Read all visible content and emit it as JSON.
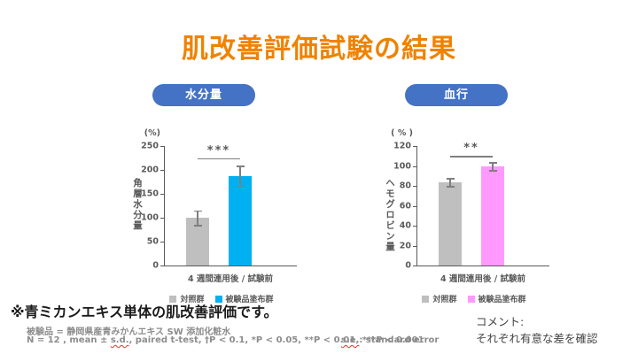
{
  "title": "肌改善評価試験の結果",
  "colors": {
    "title_orange": "#EF8200",
    "badge_blue": "#4472C4",
    "control_gray": "#BFBFBF",
    "moisture_blue": "#00B0F0",
    "circulation_pink": "#FF99FF",
    "error_bar": "#7F7F7F",
    "axis_gray": "#595959"
  },
  "chart_data": [
    {
      "type": "bar",
      "badge": "水分量",
      "unit": "(%)",
      "ylabel": "角層水分量",
      "ylim": [
        0,
        250
      ],
      "yticks": [
        0,
        50,
        100,
        150,
        200,
        250
      ],
      "xlabel": "4 週間連用後 / 試験前",
      "significance": "***",
      "sig_level": 225,
      "bars": [
        {
          "name": "対照群",
          "value": 100,
          "error": 15,
          "color": "#BFBFBF"
        },
        {
          "name": "被験品塗布群",
          "value": 187,
          "error": 22,
          "color": "#00B0F0"
        }
      ],
      "legend": [
        {
          "label": "対照群",
          "color": "#BFBFBF"
        },
        {
          "label": "被験品塗布群",
          "color": "#00B0F0"
        }
      ]
    },
    {
      "type": "bar",
      "badge": "血行",
      "unit": "( % )",
      "ylabel": "ヘモグロビン量",
      "ylim": [
        0,
        120
      ],
      "yticks": [
        0,
        20,
        40,
        60,
        80,
        100,
        120
      ],
      "xlabel": "4 週間連用後 / 試験前",
      "significance": "**",
      "sig_level": 110,
      "bars": [
        {
          "name": "対照群",
          "value": 84,
          "error": 4,
          "color": "#BFBFBF"
        },
        {
          "name": "被験品塗布群",
          "value": 100,
          "error": 4,
          "color": "#FF99FF"
        }
      ],
      "legend": [
        {
          "label": "対照群",
          "color": "#BFBFBF"
        },
        {
          "label": "被験品塗布群",
          "color": "#FF99FF"
        }
      ]
    }
  ],
  "note": "※青ミカンエキス単体の肌改善評価です。",
  "footnote": {
    "line1": "被験品 = 静岡県産青みかんエキス SW 添加化粧水",
    "line2_pre": "N = 12 , mean ± ",
    "line2_sd": "s.d.",
    "line2_post": ", paired t-test, †P < 0.1, *P < 0.05, **P < 0.01, ***P < 0.001",
    "se_term": "s.e.",
    "se_rest": ": standard error"
  },
  "comment": {
    "line1": "コメント:",
    "line2": "それぞれ有意な差を確認"
  }
}
